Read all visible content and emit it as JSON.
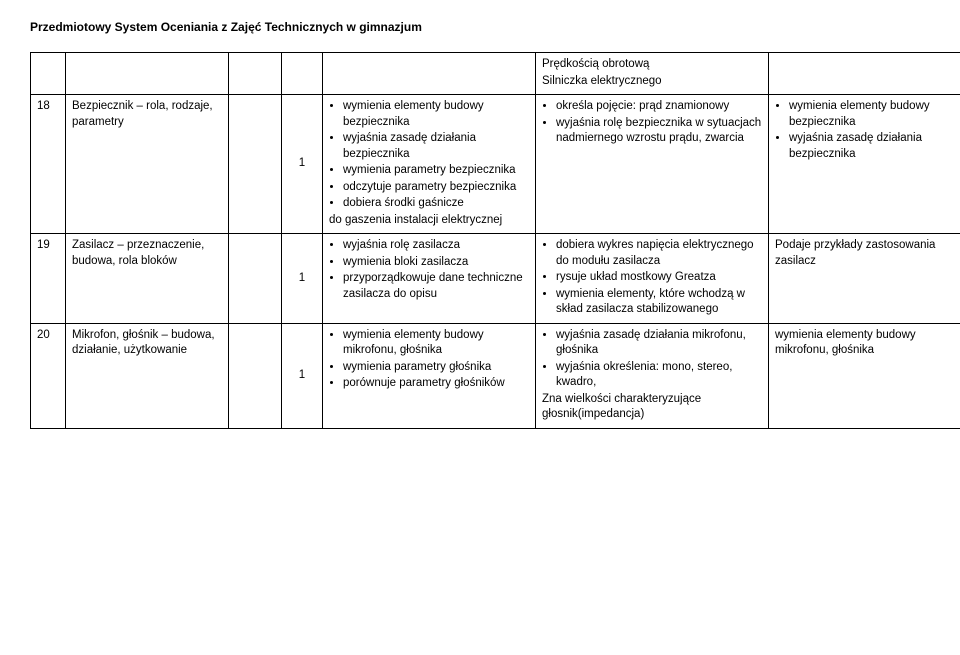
{
  "header": "Przedmiotowy System Oceniania z Zajęć Technicznych w gimnazjum",
  "topCell": {
    "line1": "Prędkością obrotową",
    "line2": "Silniczka elektrycznego"
  },
  "rows": [
    {
      "num": "18",
      "topic": "Bezpiecznik – rola, rodzaje, parametry",
      "count": "1",
      "col1": [
        {
          "t": "wymienia elementy budowy bezpiecznika",
          "b": true
        },
        {
          "t": "wyjaśnia zasadę działania bezpiecznika",
          "b": true
        },
        {
          "t": "wymienia parametry bezpiecznika",
          "b": true,
          "indentTail": true
        },
        {
          "t": "odczytuje parametry bezpiecznika",
          "b": true
        },
        {
          "t": "dobiera środki gaśnicze",
          "b": true,
          "indentTail": true
        },
        {
          "t": "do gaszenia instalacji elektrycznej",
          "b": false
        }
      ],
      "col2": [
        {
          "t": "określa pojęcie: prąd znamionowy",
          "b": true
        },
        {
          "t": "wyjaśnia rolę bezpiecznika w sytuacjach nadmiernego wzrostu prądu, zwarcia",
          "b": true
        }
      ],
      "col3": [
        {
          "t": "wymienia elementy budowy bezpiecznika",
          "b": true
        },
        {
          "t": "wyjaśnia zasadę działania bezpiecznika",
          "b": true
        }
      ]
    },
    {
      "num": "19",
      "topic": "Zasilacz – przeznaczenie, budowa, rola bloków",
      "count": "1",
      "col1": [
        {
          "t": "wyjaśnia rolę zasilacza",
          "b": true
        },
        {
          "t": "wymienia bloki zasilacza",
          "b": true
        },
        {
          "t": "przyporządkowuje dane techniczne zasilacza do opisu",
          "b": true
        }
      ],
      "col2": [
        {
          "t": "dobiera wykres napięcia elektrycznego do modułu zasilacza",
          "b": true,
          "indentTail": true
        },
        {
          "t": "rysuje układ mostkowy Greatza",
          "b": true
        },
        {
          "t": "wymienia elementy, które wchodzą w skład zasilacza stabilizowanego",
          "b": true
        }
      ],
      "col3": [
        {
          "t": "Podaje przykłady zastosowania zasilacz",
          "b": false
        }
      ]
    },
    {
      "num": "20",
      "topic": "Mikrofon, głośnik – budowa, działanie, użytkowanie",
      "count": "1",
      "col1": [
        {
          "t": "wymienia elementy budowy mikrofonu, głośnika",
          "b": true
        },
        {
          "t": "wymienia parametry głośnika",
          "b": true
        },
        {
          "t": "porównuje parametry głośników",
          "b": true
        }
      ],
      "col2": [
        {
          "t": "wyjaśnia zasadę działania mikrofonu, głośnika",
          "b": true,
          "indentTail": true,
          "extraIndent": true
        },
        {
          "t": "wyjaśnia określenia: mono, stereo, kwadro,",
          "b": true
        },
        {
          "t": "Zna wielkości charakteryzujące głosnik(impedancja)",
          "b": false
        }
      ],
      "col3": [
        {
          "t": "wymienia elementy budowy mikrofonu, głośnika",
          "b": false
        }
      ]
    }
  ]
}
